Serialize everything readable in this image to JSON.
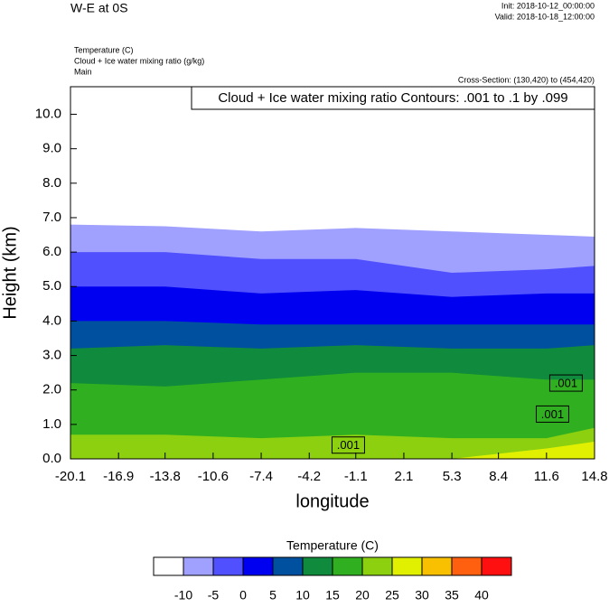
{
  "chart_data": {
    "type": "contourf",
    "title": "W-E at 0S",
    "init": "Init: 2018-10-12_00:00:00",
    "valid": "Valid: 2018-10-18_12:00:00",
    "fields": [
      "Temperature   (C)",
      "Cloud + Ice water mixing ratio   (g/kg)",
      "Main"
    ],
    "cross_section": "Cross-Section: (130,420) to (454,420)",
    "contour_info": "Cloud + Ice water mixing ratio Contours: .001 to .1 by .099",
    "x_label": "longitude",
    "y_label": "Height (km)",
    "xlim": [
      -20.1,
      14.8
    ],
    "xticks": [
      -20.1,
      -16.9,
      -13.8,
      -10.6,
      -7.4,
      -4.2,
      -1.1,
      2.1,
      5.3,
      8.4,
      11.6,
      14.8
    ],
    "ylim": [
      0,
      10.8
    ],
    "yticks": [
      {
        "value": 0,
        "label": "0.0"
      },
      {
        "value": 1,
        "label": "1.0"
      },
      {
        "value": 2,
        "label": "2.0"
      },
      {
        "value": 3,
        "label": "3.0"
      },
      {
        "value": 4,
        "label": "4.0"
      },
      {
        "value": 5,
        "label": "5.0"
      },
      {
        "value": 6,
        "label": "6.0"
      },
      {
        "value": 7,
        "label": "7.0"
      },
      {
        "value": 8,
        "label": "8.0"
      },
      {
        "value": 9,
        "label": "9.0"
      },
      {
        "value": 10,
        "label": "10.0"
      }
    ],
    "contour_x": [
      -20.1,
      -13.8,
      -7.4,
      -1.1,
      5.3,
      11.6,
      14.8
    ],
    "contours": [
      {
        "level": -10,
        "heights": [
          6.8,
          6.75,
          6.6,
          6.7,
          6.6,
          6.5,
          6.45
        ]
      },
      {
        "level": -5,
        "heights": [
          6.0,
          6.0,
          5.8,
          5.8,
          5.4,
          5.5,
          5.6
        ]
      },
      {
        "level": 0,
        "heights": [
          5.0,
          5.0,
          4.8,
          4.9,
          4.7,
          4.8,
          4.8
        ]
      },
      {
        "level": 5,
        "heights": [
          4.0,
          4.0,
          3.9,
          3.9,
          3.9,
          3.9,
          3.9
        ]
      },
      {
        "level": 10,
        "heights": [
          3.2,
          3.3,
          3.2,
          3.3,
          3.2,
          3.2,
          3.3
        ]
      },
      {
        "level": 15,
        "heights": [
          2.2,
          2.1,
          2.3,
          2.5,
          2.5,
          2.3,
          2.3
        ]
      },
      {
        "level": 20,
        "heights": [
          0.7,
          0.7,
          0.6,
          0.7,
          0.6,
          0.6,
          0.9
        ]
      },
      {
        "level": 25,
        "heights": [
          0,
          0,
          0,
          0,
          0,
          0.3,
          0.5
        ]
      }
    ],
    "contour_labels": [
      {
        "text": ".001",
        "x": -1.6,
        "y": 0.4
      },
      {
        "text": ".001",
        "x": 12.0,
        "y": 1.3
      },
      {
        "text": ".001",
        "x": 12.9,
        "y": 2.2
      }
    ],
    "colorbar": {
      "title": "Temperature  (C)",
      "levels": [
        -10,
        -5,
        0,
        5,
        10,
        15,
        20,
        25,
        30,
        35,
        40
      ],
      "colors": [
        "#ffffff",
        "#a0a0ff",
        "#5050ff",
        "#0000f0",
        "#0050a0",
        "#108a3c",
        "#30b020",
        "#8cd010",
        "#e0f000",
        "#f8c000",
        "#ff6010",
        "#ff1010"
      ]
    }
  }
}
